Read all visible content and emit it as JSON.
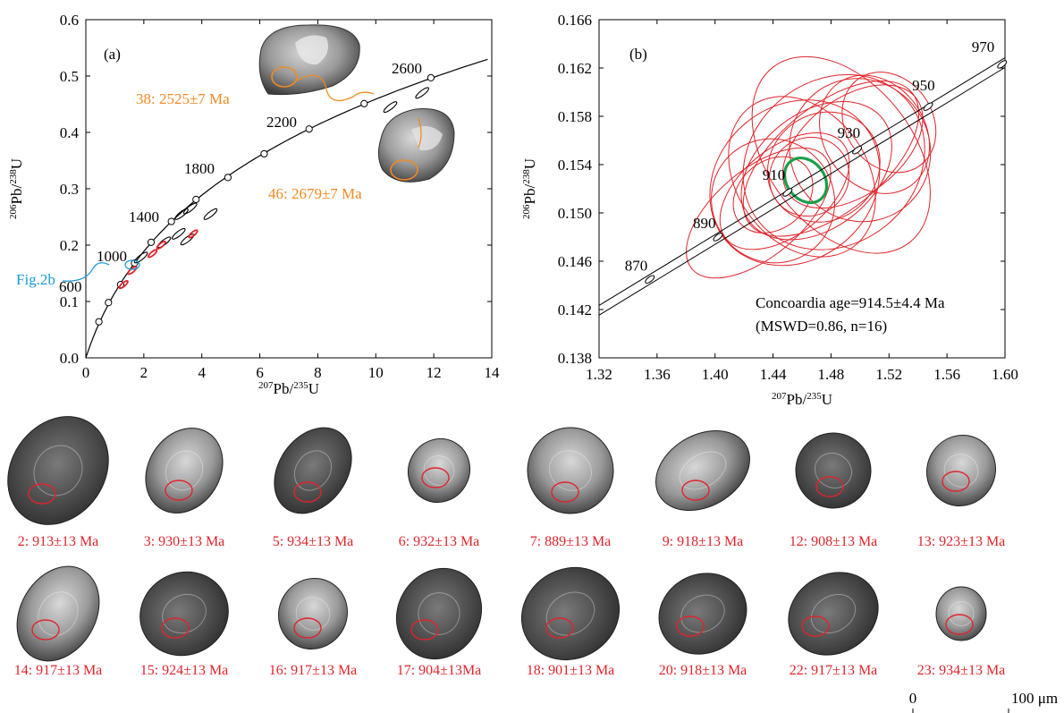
{
  "colors": {
    "axis": "#000000",
    "red": "#e0242b",
    "orange": "#f08a23",
    "blue": "#1a9bd8",
    "green": "#18a04a",
    "crystal_light": "#a8a8a8",
    "crystal_dark": "#4a4a4a"
  },
  "chart_data": [
    {
      "id": "a",
      "type": "scatter",
      "panel_label": "(a)",
      "xlabel": "²⁰⁷Pb/²³⁵U",
      "ylabel": "²⁰⁶Pb/²³⁸U",
      "xlim": [
        0,
        14
      ],
      "ylim": [
        0,
        0.6
      ],
      "xticks": [
        0,
        2,
        4,
        6,
        8,
        10,
        12,
        14
      ],
      "yticks": [
        0.0,
        0.1,
        0.2,
        0.3,
        0.4,
        0.5,
        0.6
      ],
      "ytick_labels": [
        "0.0",
        "0.1",
        "0.2",
        "0.3",
        "0.4",
        "0.5",
        "0.6"
      ],
      "concordia_ages": [
        600,
        1000,
        1400,
        1800,
        2200,
        2600
      ],
      "concordia_points": [
        {
          "x": 0.45,
          "y": 0.064
        },
        {
          "x": 0.78,
          "y": 0.098
        },
        {
          "x": 1.2,
          "y": 0.13
        },
        {
          "x": 1.68,
          "y": 0.168
        },
        {
          "x": 2.25,
          "y": 0.205
        },
        {
          "x": 2.95,
          "y": 0.242
        },
        {
          "x": 3.8,
          "y": 0.281
        },
        {
          "x": 4.9,
          "y": 0.32
        },
        {
          "x": 6.15,
          "y": 0.362
        },
        {
          "x": 7.7,
          "y": 0.406
        },
        {
          "x": 9.6,
          "y": 0.451
        },
        {
          "x": 11.9,
          "y": 0.497
        }
      ],
      "ellipses_black": [
        {
          "x": 10.5,
          "y": 0.445
        },
        {
          "x": 11.6,
          "y": 0.47
        },
        {
          "x": 3.3,
          "y": 0.255
        },
        {
          "x": 3.6,
          "y": 0.265
        },
        {
          "x": 4.3,
          "y": 0.255
        },
        {
          "x": 3.2,
          "y": 0.22
        },
        {
          "x": 2.7,
          "y": 0.205
        },
        {
          "x": 3.5,
          "y": 0.21
        },
        {
          "x": 1.9,
          "y": 0.178
        }
      ],
      "ellipses_red": [
        {
          "x": 1.3,
          "y": 0.13
        },
        {
          "x": 1.6,
          "y": 0.155
        },
        {
          "x": 2.3,
          "y": 0.185
        },
        {
          "x": 2.6,
          "y": 0.2
        },
        {
          "x": 3.7,
          "y": 0.22
        }
      ],
      "annotations": [
        {
          "text": "38: 2525±7 Ma",
          "color": "orange"
        },
        {
          "text": "46: 2679±7 Ma",
          "color": "orange"
        },
        {
          "text": "Fig.2b",
          "color": "blue"
        }
      ]
    },
    {
      "id": "b",
      "type": "scatter",
      "panel_label": "(b)",
      "xlabel": "²⁰⁷Pb/²³⁵U",
      "ylabel": "²⁰⁶Pb/²³⁸U",
      "xlim": [
        1.32,
        1.6
      ],
      "ylim": [
        0.138,
        0.166
      ],
      "xticks": [
        1.32,
        1.36,
        1.4,
        1.44,
        1.48,
        1.52,
        1.56,
        1.6
      ],
      "xtick_labels": [
        "1.32",
        "1.36",
        "1.40",
        "1.44",
        "1.48",
        "1.52",
        "1.56",
        "1.60"
      ],
      "yticks": [
        0.138,
        0.142,
        0.146,
        0.15,
        0.154,
        0.158,
        0.162,
        0.166
      ],
      "ytick_labels": [
        "0.138",
        "0.142",
        "0.146",
        "0.150",
        "0.154",
        "0.158",
        "0.162",
        "0.166"
      ],
      "concordia_ages": [
        870,
        890,
        910,
        930,
        950,
        970
      ],
      "concordia_points": [
        {
          "x": 1.355,
          "y": 0.1445
        },
        {
          "x": 1.402,
          "y": 0.148
        },
        {
          "x": 1.45,
          "y": 0.1517
        },
        {
          "x": 1.498,
          "y": 0.1552
        },
        {
          "x": 1.547,
          "y": 0.1588
        },
        {
          "x": 1.598,
          "y": 0.1623
        }
      ],
      "red_ellipses": [
        {
          "x": 1.487,
          "y": 0.1548,
          "rx": 0.05,
          "ry": 0.0023,
          "rot": -38
        },
        {
          "x": 1.455,
          "y": 0.1525,
          "rx": 0.062,
          "ry": 0.0016,
          "rot": -40
        },
        {
          "x": 1.47,
          "y": 0.1535,
          "rx": 0.058,
          "ry": 0.0012,
          "rot": -38
        },
        {
          "x": 1.5,
          "y": 0.1552,
          "rx": 0.048,
          "ry": 0.0015,
          "rot": -35
        },
        {
          "x": 1.44,
          "y": 0.151,
          "rx": 0.042,
          "ry": 0.0013,
          "rot": -40
        },
        {
          "x": 1.48,
          "y": 0.1545,
          "rx": 0.072,
          "ry": 0.0011,
          "rot": -39
        },
        {
          "x": 1.43,
          "y": 0.15,
          "rx": 0.06,
          "ry": 0.0009,
          "rot": -40
        },
        {
          "x": 1.495,
          "y": 0.1555,
          "rx": 0.055,
          "ry": 0.001,
          "rot": -37
        },
        {
          "x": 1.46,
          "y": 0.153,
          "rx": 0.045,
          "ry": 0.0018,
          "rot": -36
        },
        {
          "x": 1.475,
          "y": 0.1538,
          "rx": 0.04,
          "ry": 0.0011,
          "rot": -38
        },
        {
          "x": 1.51,
          "y": 0.1565,
          "rx": 0.035,
          "ry": 0.0013,
          "rot": -35
        },
        {
          "x": 1.44,
          "y": 0.1515,
          "rx": 0.03,
          "ry": 0.0007,
          "rot": -40
        },
        {
          "x": 1.482,
          "y": 0.1542,
          "rx": 0.066,
          "ry": 0.0017,
          "rot": -38
        },
        {
          "x": 1.448,
          "y": 0.1518,
          "rx": 0.052,
          "ry": 0.0009,
          "rot": -39
        },
        {
          "x": 1.52,
          "y": 0.1575,
          "rx": 0.03,
          "ry": 0.0011,
          "rot": -35
        },
        {
          "x": 1.465,
          "y": 0.153,
          "rx": 0.028,
          "ry": 0.0008,
          "rot": -38
        }
      ],
      "mean_ellipse": {
        "x": 1.4625,
        "y": 0.1527,
        "rx": 0.013,
        "ry": 0.0005,
        "rot": -38
      },
      "result_lines": [
        "Concoardia age=914.5±4.4 Ma",
        "(MSWD=0.86, n=16)"
      ]
    }
  ],
  "grains_row1": [
    {
      "label": "2: 913±13 Ma"
    },
    {
      "label": "3: 930±13 Ma"
    },
    {
      "label": "5: 934±13 Ma"
    },
    {
      "label": "6: 932±13 Ma"
    },
    {
      "label": "7: 889±13 Ma"
    },
    {
      "label": "9: 918±13 Ma"
    },
    {
      "label": "12: 908±13 Ma"
    },
    {
      "label": "13: 923±13 Ma"
    }
  ],
  "grains_row2": [
    {
      "label": "14: 917±13 Ma"
    },
    {
      "label": "15: 924±13 Ma"
    },
    {
      "label": "16: 917±13 Ma"
    },
    {
      "label": "17: 904±13Ma"
    },
    {
      "label": "18: 901±13 Ma"
    },
    {
      "label": "20: 918±13 Ma"
    },
    {
      "label": "22: 917±13 Ma"
    },
    {
      "label": "23: 934±13 Ma"
    }
  ],
  "scale_bar": {
    "start": "0",
    "end": "100 μm"
  }
}
